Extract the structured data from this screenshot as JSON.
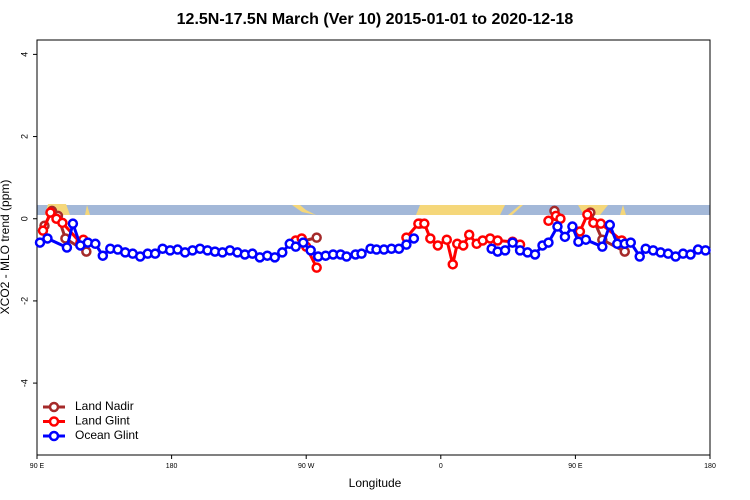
{
  "chart_data": {
    "type": "line",
    "title": "12.5N-17.5N March (Ver 10)   2015-01-01 to 2020-12-18",
    "x_label": "Longitude",
    "y_label": "XCO2 - MLO trend (ppm)",
    "xlim": [
      90,
      540
    ],
    "xticks": [
      {
        "value": 90,
        "label": "90 E"
      },
      {
        "value": 180,
        "label": "180"
      },
      {
        "value": 270,
        "label": "90 W"
      },
      {
        "value": 360,
        "label": "0"
      },
      {
        "value": 450,
        "label": "90 E"
      },
      {
        "value": 540,
        "label": "180"
      }
    ],
    "ylim": [
      -5.75,
      4.35
    ],
    "yticks": [
      -4,
      -2,
      0,
      2,
      4
    ],
    "legend": "bottom-left",
    "series": [
      {
        "name": "Land Nadir",
        "color": "#a52a2a",
        "x": [
          95,
          100,
          104,
          109,
          123,
          null,
          266,
          277,
          null,
          346,
          null,
          436,
          null,
          460,
          468,
          483
        ],
        "values": [
          -0.17,
          0.19,
          0.07,
          -0.48,
          -0.8,
          null,
          -0.56,
          -0.46,
          null,
          -0.12,
          null,
          0.19,
          null,
          0.15,
          -0.51,
          -0.8
        ]
      },
      {
        "name": "Land Glint",
        "color": "#ff0000",
        "x": [
          94,
          99,
          103,
          107,
          119,
          121,
          null,
          263,
          267,
          270,
          277,
          null,
          337,
          345,
          349,
          353,
          358,
          364,
          368,
          371,
          375,
          379,
          384,
          388,
          393,
          398,
          408,
          413,
          null,
          432,
          437,
          440,
          null,
          453,
          458,
          462,
          467,
          481
        ],
        "values": [
          -0.29,
          0.15,
          0,
          -0.1,
          -0.58,
          -0.51,
          null,
          -0.53,
          -0.48,
          -0.68,
          -1.19,
          null,
          -0.46,
          -0.12,
          -0.12,
          -0.48,
          -0.65,
          -0.51,
          -1.11,
          -0.61,
          -0.65,
          -0.39,
          -0.61,
          -0.53,
          -0.48,
          -0.53,
          -0.56,
          -0.63,
          null,
          -0.05,
          0.07,
          0,
          null,
          -0.31,
          0.1,
          -0.1,
          -0.12,
          -0.53
        ]
      },
      {
        "name": "Ocean Glint",
        "color": "#0000ff",
        "x": [
          92,
          97,
          110,
          114,
          119,
          124,
          129,
          134,
          139,
          144,
          149,
          154,
          159,
          164,
          169,
          174,
          179,
          184,
          189,
          194,
          199,
          204,
          209,
          214,
          219,
          224,
          229,
          234,
          239,
          244,
          249,
          254,
          259,
          263,
          268,
          273,
          278,
          283,
          288,
          293,
          297,
          303,
          307,
          313,
          317,
          322,
          327,
          332,
          337,
          342,
          null,
          394,
          398,
          403,
          408,
          413,
          418,
          423,
          428,
          432,
          438,
          443,
          448,
          452,
          457,
          468,
          473,
          478,
          483,
          487,
          493,
          497,
          502,
          507,
          512,
          517,
          522,
          527,
          532,
          537
        ],
        "values": [
          -0.58,
          -0.48,
          -0.7,
          -0.12,
          -0.65,
          -0.58,
          -0.61,
          -0.9,
          -0.73,
          -0.75,
          -0.82,
          -0.85,
          -0.92,
          -0.85,
          -0.85,
          -0.73,
          -0.77,
          -0.75,
          -0.82,
          -0.77,
          -0.73,
          -0.77,
          -0.8,
          -0.82,
          -0.77,
          -0.82,
          -0.87,
          -0.85,
          -0.94,
          -0.9,
          -0.94,
          -0.82,
          -0.61,
          -0.68,
          -0.58,
          -0.77,
          -0.92,
          -0.9,
          -0.87,
          -0.87,
          -0.92,
          -0.87,
          -0.85,
          -0.73,
          -0.75,
          -0.75,
          -0.73,
          -0.73,
          -0.63,
          -0.48,
          null,
          -0.73,
          -0.8,
          -0.77,
          -0.58,
          -0.77,
          -0.82,
          -0.87,
          -0.65,
          -0.58,
          -0.19,
          -0.44,
          -0.19,
          -0.56,
          -0.51,
          -0.68,
          -0.15,
          -0.61,
          -0.61,
          -0.58,
          -0.92,
          -0.73,
          -0.77,
          -0.82,
          -0.85,
          -0.92,
          -0.85,
          -0.87,
          -0.75,
          -0.77
        ]
      }
    ]
  }
}
